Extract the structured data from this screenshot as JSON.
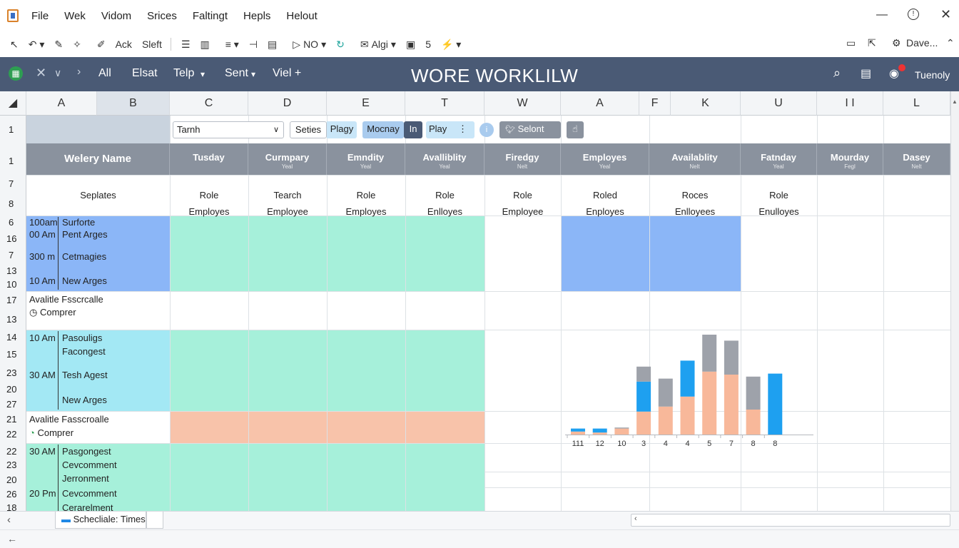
{
  "menu": [
    "File",
    "Wek",
    "Vidom",
    "Srices",
    "Faltingt",
    "Hepls",
    "Helout"
  ],
  "toolbar": {
    "ack": "Ack",
    "sleft": "Sleft",
    "no": "NO",
    "align": "Algi",
    "five": "5",
    "user": "Dave..."
  },
  "appbar": {
    "nav": [
      "All",
      "Elsat",
      "Telp",
      "Sent",
      "Viel +"
    ],
    "title": "WORE WORKLILW",
    "right_label": "Tuenoly"
  },
  "columns": [
    "A",
    "B",
    "C",
    "D",
    "E",
    "T",
    "W",
    "A",
    "F",
    "K",
    "U",
    "I I",
    "L"
  ],
  "row_numbers": [
    "1",
    "1",
    "7",
    "8",
    "6",
    "16",
    "7",
    "13",
    "10",
    "17",
    "13",
    "14",
    "15",
    "23",
    "20",
    "27",
    "21",
    "22",
    "22",
    "23",
    "20",
    "26",
    "18"
  ],
  "controls": {
    "search_value": "Tarnh",
    "series": "Seties",
    "play1": "Plagy",
    "monday": "Mocnay",
    "in": "In",
    "play2": "Play",
    "select": "Selont"
  },
  "header_row": {
    "name": "Welery Name",
    "days": [
      {
        "label": "Tusday",
        "sub": ""
      },
      {
        "label": "Curmpary",
        "sub": "Yeal"
      },
      {
        "label": "Emndity",
        "sub": "Yeal"
      },
      {
        "label": "Avalliblity",
        "sub": "Yeal"
      },
      {
        "label": "Firedgy",
        "sub": "Nelt"
      },
      {
        "label": "Employes",
        "sub": "Yeal"
      },
      {
        "label": "Availablity",
        "sub": "Nelt"
      },
      {
        "label": "Fatnday",
        "sub": "Yeal"
      },
      {
        "label": "Mourday",
        "sub": "Fegl"
      },
      {
        "label": "Dasey",
        "sub": "Nelt"
      }
    ]
  },
  "role_row": {
    "label": "Seplates",
    "roles": [
      {
        "role": "Role",
        "emp": "Employes"
      },
      {
        "role": "Tearch",
        "emp": "Employee"
      },
      {
        "role": "Role",
        "emp": "Employes"
      },
      {
        "role": "Role",
        "emp": "Enlloyes"
      },
      {
        "role": "Role",
        "emp": "Employee"
      },
      {
        "role": "Roled",
        "emp": "Enployes"
      },
      {
        "role": "Roces",
        "emp": "Enlloyees"
      },
      {
        "role": "Role",
        "emp": "Enulloyes"
      }
    ]
  },
  "schedule_blocks": [
    {
      "times": [
        "100am",
        "00 Am",
        "300 m",
        "10 Am"
      ],
      "names": [
        "Surforte",
        "Pent Arges",
        "Cetmagies",
        "New Arges"
      ]
    },
    {
      "title": "Avalitle Fsscrcalle",
      "sub": "Comprer"
    },
    {
      "times": [
        "10 Am",
        "",
        "30 AM",
        ""
      ],
      "names": [
        "Pasouligs",
        "Facongest",
        "Tesh Agest",
        "New Arges"
      ]
    },
    {
      "title": "Avalitle Fasscroalle",
      "sub": "Comprer"
    },
    {
      "times": [
        "30 AM",
        "",
        "",
        "20 Pm",
        ""
      ],
      "names": [
        "Pasgongest",
        "Cevcomment",
        "Jerronment",
        "Cevcomment",
        "Cerarelment"
      ]
    }
  ],
  "chart_data": {
    "type": "bar",
    "categories": [
      "111",
      "12",
      "10",
      "3",
      "4",
      "4",
      "5",
      "7",
      "8",
      "8"
    ],
    "series": [
      {
        "color": "#f8b89a",
        "values": [
          0.3,
          0.2,
          0.6,
          2.3,
          2.8,
          3.8,
          6.3,
          6.0,
          2.5,
          0
        ]
      },
      {
        "color": "#1ea0f0",
        "values": [
          0.3,
          0.4,
          0,
          3.0,
          0,
          3.6,
          0,
          0,
          0,
          6.1
        ]
      },
      {
        "color": "#9ea2aa",
        "values": [
          0,
          0,
          0.1,
          1.5,
          2.8,
          0,
          3.7,
          3.4,
          3.3,
          0
        ]
      }
    ],
    "ylim": [
      0,
      10
    ],
    "legend": "none"
  },
  "sheet_tab": "Schecliale: Times"
}
